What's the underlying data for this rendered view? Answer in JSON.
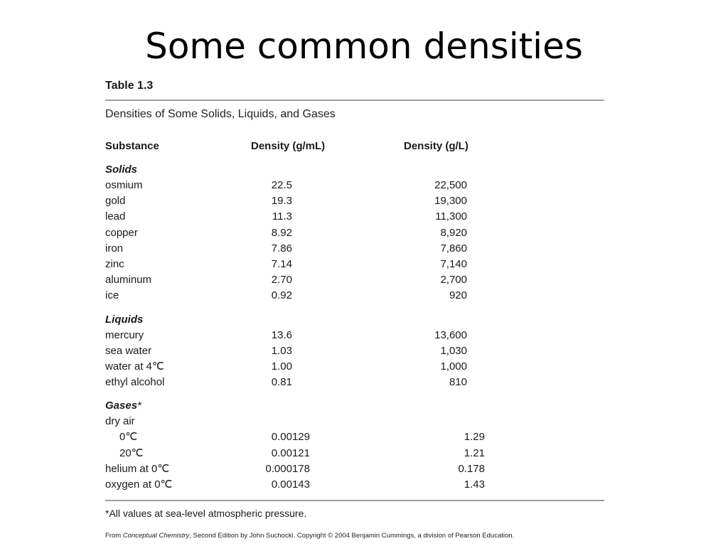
{
  "title": "Some common densities",
  "table": {
    "label": "Table 1.3",
    "caption": "Densities of Some Solids, Liquids, and Gases",
    "headers": [
      "Substance",
      "Density (g/mL)",
      "Density (g/L)"
    ],
    "solids": {
      "heading": "Solids",
      "rows": [
        [
          "osmium",
          "22.5",
          "22,500"
        ],
        [
          "gold",
          "19.3",
          "19,300"
        ],
        [
          "lead",
          "11.3",
          "11,300"
        ],
        [
          "copper",
          "8.92",
          "8,920"
        ],
        [
          "iron",
          "7.86",
          "7,860"
        ],
        [
          "zinc",
          "7.14",
          "7,140"
        ],
        [
          "aluminum",
          "2.70",
          "2,700"
        ],
        [
          "ice",
          "0.92",
          "920"
        ]
      ]
    },
    "liquids": {
      "heading": "Liquids",
      "rows": [
        [
          "mercury",
          "13.6",
          "13,600"
        ],
        [
          "sea water",
          "1.03",
          "1,030"
        ],
        [
          "water at 4℃",
          "1.00",
          "1,000"
        ],
        [
          "ethyl alcohol",
          "0.81",
          "810"
        ]
      ]
    },
    "gases": {
      "heading": "Gases",
      "heading_mark": "*",
      "dry_air_label": "dry air",
      "dry_air_rows": [
        [
          "0℃",
          "0.00129",
          "1.29"
        ],
        [
          "20℃",
          "0.00121",
          "1.21"
        ]
      ],
      "rows": [
        [
          "helium at 0℃",
          "0.000178",
          "0.178"
        ],
        [
          "oxygen at 0℃",
          "0.00143",
          "1.43"
        ]
      ]
    },
    "footnote": "*All values at sea-level atmospheric pressure."
  },
  "source": {
    "prefix": "From ",
    "book": "Conceptual Chemistry",
    "rest": ", Second Edition by John Suchocki. Copyright © 2004 Benjamin Cummings, a division of Pearson Education."
  }
}
